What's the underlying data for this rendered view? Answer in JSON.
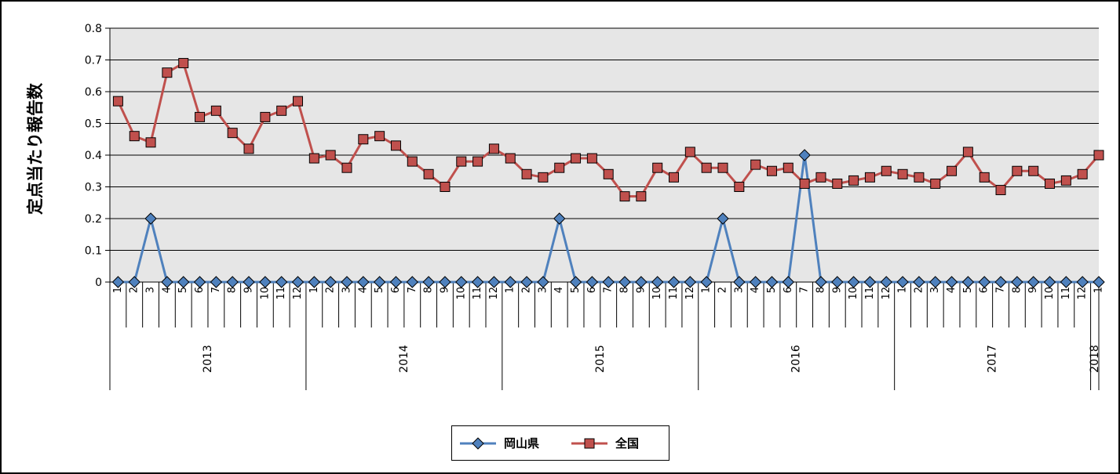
{
  "chart_data": {
    "type": "line",
    "title": "",
    "ylabel": "定点当たり報告数",
    "xlabel": "",
    "ylim": [
      0,
      0.8
    ],
    "yticks": [
      "0",
      "0.1",
      "0.2",
      "0.3",
      "0.4",
      "0.5",
      "0.6",
      "0.7",
      "0.8"
    ],
    "grid": true,
    "legend_position": "bottom",
    "months": [
      "1",
      "2",
      "3",
      "4",
      "5",
      "6",
      "7",
      "8",
      "9",
      "10",
      "11",
      "12",
      "1",
      "2",
      "3",
      "4",
      "5",
      "6",
      "7",
      "8",
      "9",
      "10",
      "11",
      "12",
      "1",
      "2",
      "3",
      "4",
      "5",
      "6",
      "7",
      "8",
      "9",
      "10",
      "11",
      "12",
      "1",
      "2",
      "3",
      "4",
      "5",
      "6",
      "7",
      "8",
      "9",
      "10",
      "11",
      "12",
      "1",
      "2",
      "3",
      "4",
      "5",
      "6",
      "7",
      "8",
      "9",
      "10",
      "11",
      "12",
      "1"
    ],
    "years": [
      {
        "label": "2013",
        "start": 0,
        "end": 12
      },
      {
        "label": "2014",
        "start": 12,
        "end": 24
      },
      {
        "label": "2015",
        "start": 24,
        "end": 36
      },
      {
        "label": "2016",
        "start": 36,
        "end": 48
      },
      {
        "label": "2017",
        "start": 48,
        "end": 60
      },
      {
        "label": "2018",
        "start": 60,
        "end": 61
      }
    ],
    "series": [
      {
        "name": "岡山県",
        "color": "#4f81bd",
        "marker": "diamond",
        "values": [
          0,
          0,
          0.2,
          0,
          0,
          0,
          0,
          0,
          0,
          0,
          0,
          0,
          0,
          0,
          0,
          0,
          0,
          0,
          0,
          0,
          0,
          0,
          0,
          0,
          0,
          0,
          0,
          0.2,
          0,
          0,
          0,
          0,
          0,
          0,
          0,
          0,
          0,
          0.2,
          0,
          0,
          0,
          0,
          0.4,
          0,
          0,
          0,
          0,
          0,
          0,
          0,
          0,
          0,
          0,
          0,
          0,
          0,
          0,
          0,
          0,
          0,
          0
        ]
      },
      {
        "name": "全国",
        "color": "#c0504d",
        "marker": "square",
        "values": [
          0.57,
          0.46,
          0.44,
          0.66,
          0.69,
          0.52,
          0.54,
          0.47,
          0.42,
          0.52,
          0.54,
          0.57,
          0.39,
          0.4,
          0.36,
          0.45,
          0.46,
          0.43,
          0.38,
          0.34,
          0.3,
          0.38,
          0.38,
          0.42,
          0.39,
          0.34,
          0.33,
          0.36,
          0.39,
          0.39,
          0.34,
          0.27,
          0.27,
          0.36,
          0.33,
          0.41,
          0.36,
          0.36,
          0.3,
          0.37,
          0.35,
          0.36,
          0.31,
          0.33,
          0.31,
          0.32,
          0.33,
          0.35,
          0.34,
          0.33,
          0.31,
          0.35,
          0.41,
          0.33,
          0.29,
          0.35,
          0.35,
          0.31,
          0.32,
          0.34,
          0.4
        ]
      }
    ]
  },
  "legend": {
    "items": [
      {
        "label": "岡山県"
      },
      {
        "label": "全国"
      }
    ]
  }
}
